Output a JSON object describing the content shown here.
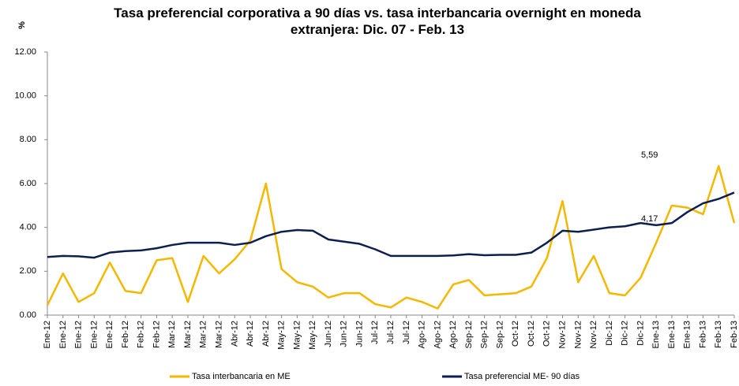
{
  "chart_data": {
    "type": "line",
    "title": "Tasa preferencial corporativa a 90 días vs. tasa interbancaria overnight en moneda extranjera: Dic. 07 - Feb. 13",
    "ylabel": "%",
    "categories": [
      "Ene-12",
      "Ene-12",
      "Ene-12",
      "Ene-12",
      "Ene-12",
      "Feb-12",
      "Feb-12",
      "Feb-12",
      "Mar-12",
      "Mar-12",
      "Mar-12",
      "Mar-12",
      "Abr-12",
      "Abr-12",
      "Abr-12",
      "May-12",
      "May-12",
      "May-12",
      "Jun-12",
      "Jun-12",
      "Jun-12",
      "Jul-12",
      "Jul-12",
      "Jul-12",
      "Ago-12",
      "Ago-12",
      "Ago-12",
      "Sep-12",
      "Sep-12",
      "Sep-12",
      "Oct-12",
      "Oct-12",
      "Oct-12",
      "Nov-12",
      "Nov-12",
      "Nov-12",
      "Dic-12",
      "Dic-12",
      "Dic-12",
      "Ene-13",
      "Ene-13",
      "Ene-13",
      "Feb-13",
      "Feb-13",
      "Feb-13"
    ],
    "series": [
      {
        "name": "Tasa interbancaria  en ME",
        "color": "#f5b800",
        "values": [
          0.45,
          1.9,
          0.6,
          1.0,
          2.4,
          1.1,
          1.0,
          2.5,
          2.6,
          0.6,
          2.7,
          1.9,
          2.55,
          3.4,
          6.0,
          2.1,
          1.5,
          1.3,
          0.8,
          1.0,
          1.0,
          0.5,
          0.35,
          0.8,
          0.6,
          0.3,
          1.4,
          1.6,
          0.9,
          0.95,
          1.0,
          1.3,
          2.6,
          5.2,
          1.5,
          2.7,
          1.0,
          0.9,
          1.7,
          3.3,
          5.0,
          4.9,
          4.6,
          6.8,
          4.2
        ]
      },
      {
        "name": "Tasa preferencial ME- 90 días",
        "color": "#0d1f4f",
        "values": [
          2.65,
          2.7,
          2.68,
          2.62,
          2.85,
          2.92,
          2.95,
          3.05,
          3.2,
          3.3,
          3.3,
          3.3,
          3.2,
          3.3,
          3.6,
          3.8,
          3.88,
          3.85,
          3.45,
          3.35,
          3.25,
          3.0,
          2.7,
          2.7,
          2.7,
          2.7,
          2.72,
          2.78,
          2.73,
          2.75,
          2.75,
          2.85,
          3.3,
          3.85,
          3.8,
          3.9,
          4.0,
          4.05,
          4.2,
          4.1,
          4.2,
          4.7,
          5.1,
          5.3,
          5.59
        ]
      }
    ],
    "annotations": [
      "5,59",
      "4,17"
    ],
    "ylim": [
      0,
      12
    ],
    "yticks": [
      {
        "value": 0,
        "label": "0.00"
      },
      {
        "value": 2,
        "label": "2.00"
      },
      {
        "value": 4,
        "label": "4.00"
      },
      {
        "value": 6,
        "label": "6.00"
      },
      {
        "value": 8,
        "label": "8.00"
      },
      {
        "value": 10,
        "label": "10.00"
      },
      {
        "value": 12,
        "label": "12.00"
      }
    ],
    "grid": false,
    "legend": "bottom"
  }
}
